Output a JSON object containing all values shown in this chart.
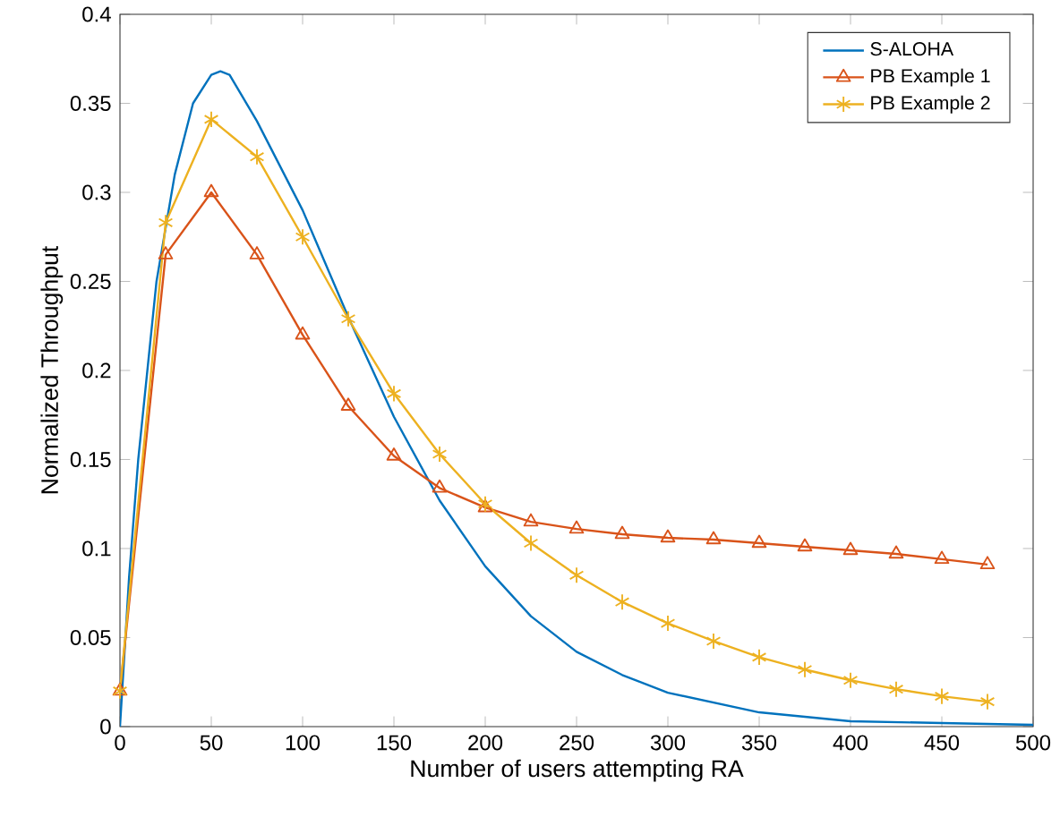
{
  "chart_data": {
    "type": "line",
    "xlabel": "Number of users attempting RA",
    "ylabel": "Normalized Throughput",
    "xlim": [
      0,
      500
    ],
    "ylim": [
      0,
      0.4
    ],
    "xticks": [
      0,
      50,
      100,
      150,
      200,
      250,
      300,
      350,
      400,
      450,
      500
    ],
    "yticks": [
      0,
      0.05,
      0.1,
      0.15,
      0.2,
      0.25,
      0.3,
      0.35,
      0.4
    ],
    "grid": false,
    "legend": "top right",
    "series": [
      {
        "name": "S-ALOHA",
        "color": "#0072bd",
        "marker": "none",
        "x": [
          0,
          5,
          10,
          20,
          30,
          40,
          50,
          55,
          60,
          75,
          100,
          125,
          150,
          175,
          200,
          225,
          250,
          275,
          300,
          350,
          400,
          450,
          500
        ],
        "values": [
          0,
          0.084,
          0.15,
          0.25,
          0.31,
          0.35,
          0.366,
          0.368,
          0.366,
          0.34,
          0.29,
          0.23,
          0.174,
          0.127,
          0.09,
          0.062,
          0.042,
          0.029,
          0.019,
          0.008,
          0.003,
          0.002,
          0.001
        ]
      },
      {
        "name": "PB Example 1",
        "color": "#d95319",
        "marker": "triangle",
        "x": [
          0,
          25,
          50,
          75,
          100,
          125,
          150,
          175,
          200,
          225,
          250,
          275,
          300,
          325,
          350,
          375,
          400,
          425,
          450,
          475
        ],
        "values": [
          0.02,
          0.265,
          0.3,
          0.265,
          0.22,
          0.18,
          0.152,
          0.134,
          0.123,
          0.115,
          0.111,
          0.108,
          0.106,
          0.105,
          0.103,
          0.101,
          0.099,
          0.097,
          0.094,
          0.091
        ]
      },
      {
        "name": "PB Example 2",
        "color": "#edb120",
        "marker": "cross",
        "x": [
          0,
          25,
          50,
          75,
          100,
          125,
          150,
          175,
          200,
          225,
          250,
          275,
          300,
          325,
          350,
          375,
          400,
          425,
          450,
          475
        ],
        "values": [
          0.02,
          0.283,
          0.341,
          0.32,
          0.275,
          0.229,
          0.187,
          0.153,
          0.125,
          0.103,
          0.085,
          0.07,
          0.058,
          0.048,
          0.039,
          0.032,
          0.026,
          0.021,
          0.017,
          0.014
        ]
      }
    ]
  }
}
